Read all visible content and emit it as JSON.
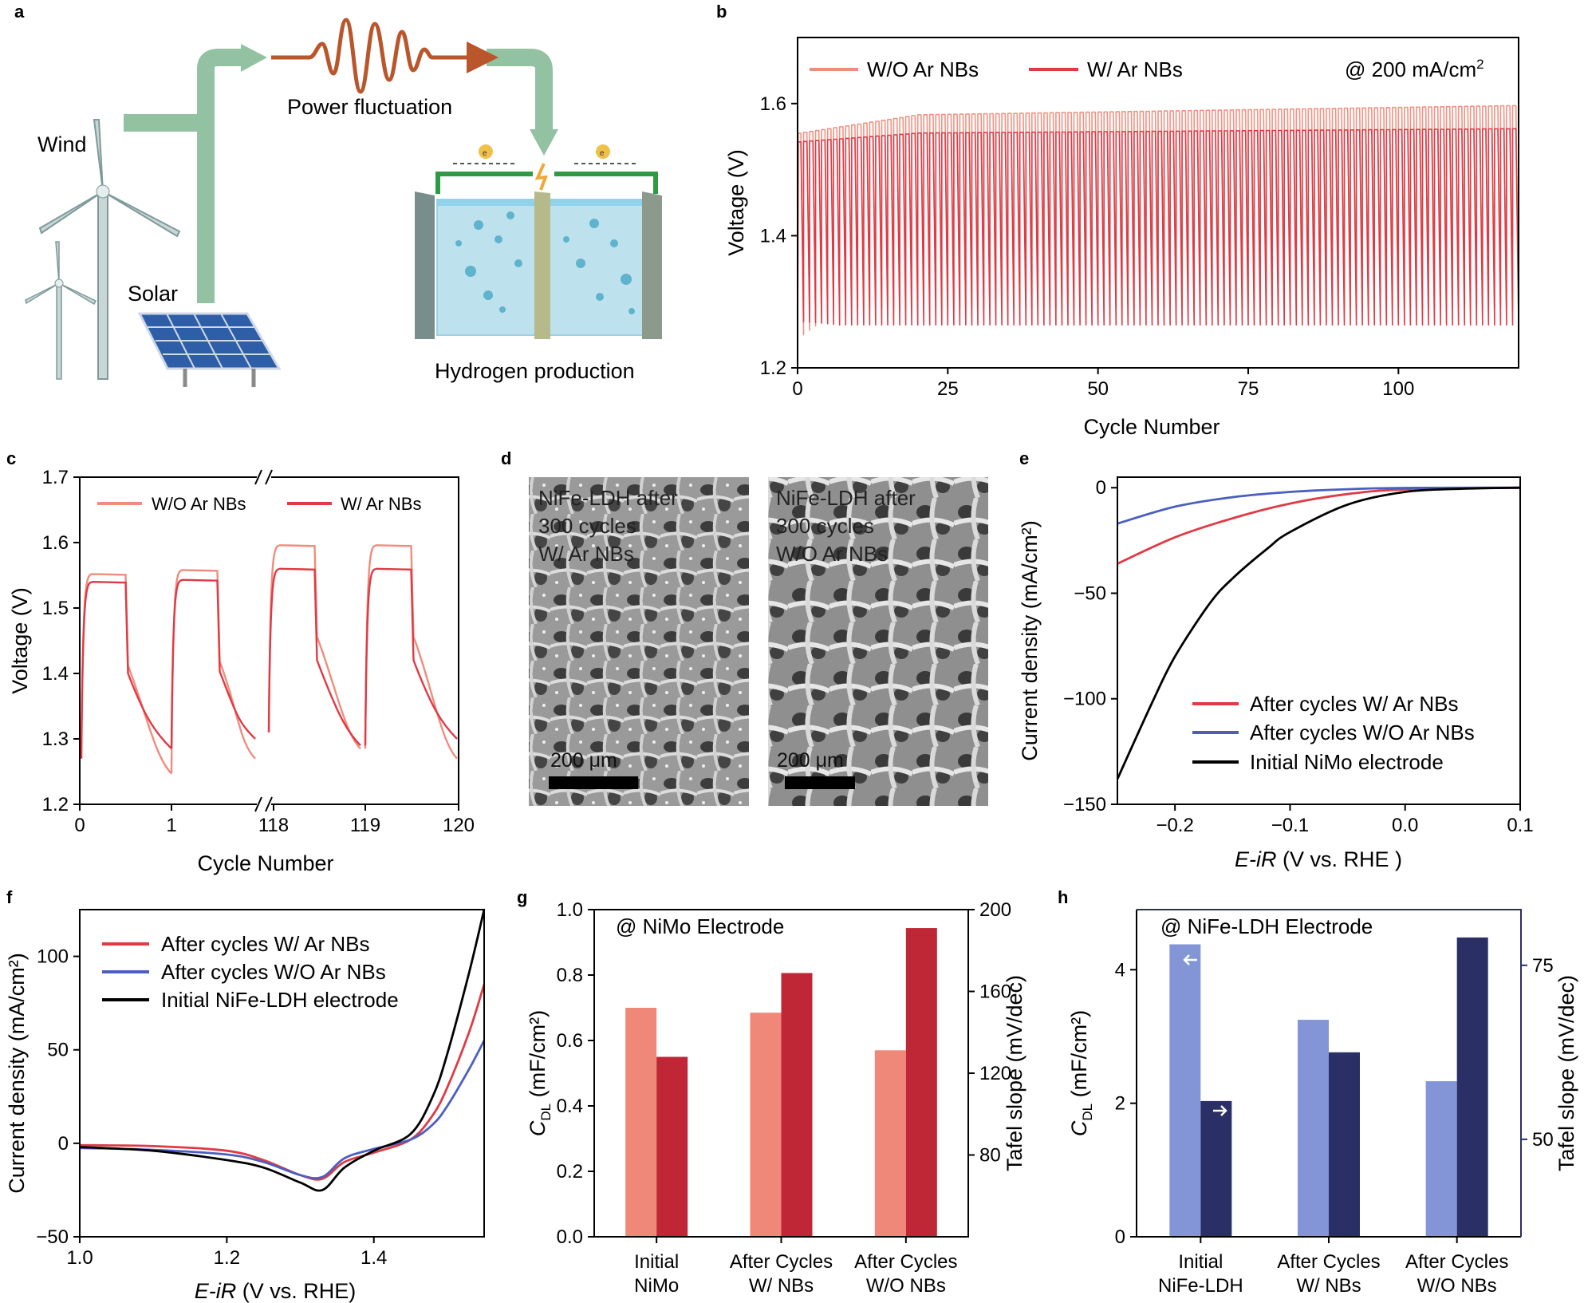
{
  "panels": {
    "a": {
      "label": "a",
      "wind": "Wind",
      "solar": "Solar",
      "fluctuation": "Power fluctuation",
      "production": "Hydrogen production",
      "electron": "e"
    },
    "b": {
      "label": "b"
    },
    "c": {
      "label": "c"
    },
    "d": {
      "label": "d",
      "left_note": [
        "NiFe-LDH after",
        "300 cycles",
        "W/ Ar NBs"
      ],
      "right_note": [
        "NiFe-LDH after",
        "300 cycles",
        "W/O Ar NBs"
      ],
      "scale": "200 μm"
    },
    "e": {
      "label": "e"
    },
    "f": {
      "label": "f"
    },
    "g": {
      "label": "g"
    },
    "h": {
      "label": "h"
    }
  },
  "colors": {
    "wo": "#f08c7c",
    "w": "#e03a45",
    "blue": "#4a5fc0",
    "black": "#000000",
    "g_cdl": "#f0887a",
    "g_tafel": "#bf2737",
    "h_cdl": "#8395d6",
    "h_tafel": "#2a2f66",
    "arrow": "#93c2a2"
  },
  "chart_data": [
    {
      "id": "b",
      "type": "line",
      "xlabel": "Cycle Number",
      "ylabel": "Voltage (V)",
      "xlim": [
        0,
        120
      ],
      "ylim": [
        1.2,
        1.7
      ],
      "xticks": [
        0,
        25,
        50,
        75,
        100
      ],
      "yticks": [
        1.2,
        1.4,
        1.6
      ],
      "annotation": "@ 200 mA/cm",
      "annotation_sup": "2",
      "series": [
        {
          "name": "W/O Ar NBs",
          "color": "wo",
          "high_start": 1.555,
          "high_end": 1.597,
          "low_start": 1.25,
          "low_end": 1.29
        },
        {
          "name": "W/ Ar NBs",
          "color": "w",
          "high_start": 1.542,
          "high_end": 1.562,
          "low_start": 1.27,
          "low_end": 1.265
        }
      ]
    },
    {
      "id": "c",
      "type": "line",
      "xlabel": "Cycle Number",
      "ylabel": "Voltage (V)",
      "ylim": [
        1.2,
        1.7
      ],
      "xticks": [
        "0",
        "1",
        "118",
        "119",
        "120"
      ],
      "yticks": [
        1.2,
        1.3,
        1.4,
        1.5,
        1.6,
        1.7
      ],
      "series": [
        {
          "name": "W/O Ar NBs",
          "color": "wo",
          "high": [
            1.552,
            1.558,
            1.596,
            1.596
          ],
          "low": [
            1.247,
            1.27,
            1.285,
            1.27
          ]
        },
        {
          "name": "W/ Ar NBs",
          "color": "w",
          "high": [
            1.54,
            1.543,
            1.56,
            1.56
          ],
          "low": [
            1.285,
            1.3,
            1.29,
            1.3
          ]
        }
      ]
    },
    {
      "id": "e",
      "type": "line",
      "xlabel_italic": "E-iR",
      "xlabel_rest": " (V vs. RHE )",
      "ylabel": "Current density (mA/cm²)",
      "xlim": [
        -0.25,
        0.1
      ],
      "ylim": [
        -150,
        5
      ],
      "xticks": [
        -0.2,
        -0.1,
        0.0,
        0.1
      ],
      "yticks": [
        0,
        -50,
        -100,
        -150
      ],
      "series": [
        {
          "name": "After cycles W/ Ar NBs",
          "color": "w",
          "x": [
            -0.25,
            -0.2,
            -0.15,
            -0.1,
            -0.05,
            0.0,
            0.1
          ],
          "y": [
            -36,
            -23.5,
            -14.5,
            -7.5,
            -3,
            -0.8,
            0
          ]
        },
        {
          "name": "After cycles W/O Ar NBs",
          "color": "blue",
          "x": [
            -0.25,
            -0.2,
            -0.15,
            -0.1,
            -0.05,
            0.0,
            0.1
          ],
          "y": [
            -17,
            -9,
            -4.5,
            -2,
            -0.7,
            -0.1,
            0
          ]
        },
        {
          "name": "Initial NiMo electrode",
          "color": "black",
          "x": [
            -0.25,
            -0.22,
            -0.2,
            -0.17,
            -0.15,
            -0.12,
            -0.1,
            -0.05,
            0.0,
            0.05,
            0.1
          ],
          "y": [
            -138,
            -102,
            -80,
            -55,
            -43,
            -29,
            -21,
            -8,
            -2,
            -0.5,
            0
          ]
        }
      ]
    },
    {
      "id": "f",
      "type": "line",
      "xlabel_italic": "E-iR",
      "xlabel_rest": " (V vs. RHE)",
      "ylabel": "Current density (mA/cm²)",
      "xlim": [
        1.0,
        1.55
      ],
      "ylim": [
        -50,
        125
      ],
      "xticks": [
        1.0,
        1.2,
        1.4
      ],
      "yticks": [
        -50,
        0,
        50,
        100
      ],
      "series": [
        {
          "name": "After cycles W/ Ar NBs",
          "color": "w",
          "x": [
            1.0,
            1.1,
            1.2,
            1.25,
            1.3,
            1.33,
            1.36,
            1.4,
            1.45,
            1.48,
            1.5,
            1.53,
            1.55
          ],
          "y": [
            -1,
            -1.5,
            -4,
            -9,
            -17,
            -19,
            -10,
            -5,
            2,
            15,
            30,
            60,
            85
          ]
        },
        {
          "name": "After cycles W/O Ar NBs",
          "color": "blue",
          "x": [
            1.0,
            1.1,
            1.2,
            1.25,
            1.3,
            1.33,
            1.36,
            1.4,
            1.45,
            1.48,
            1.5,
            1.53,
            1.55
          ],
          "y": [
            -2.5,
            -3.5,
            -6,
            -10,
            -17,
            -18,
            -8,
            -3,
            2,
            10,
            20,
            40,
            55
          ]
        },
        {
          "name": "Initial NiFe-LDH electrode",
          "color": "black",
          "x": [
            1.0,
            1.1,
            1.2,
            1.25,
            1.3,
            1.33,
            1.36,
            1.4,
            1.45,
            1.48,
            1.5,
            1.53,
            1.55
          ],
          "y": [
            -2,
            -4,
            -9,
            -13,
            -21,
            -25,
            -13,
            -4,
            5,
            25,
            48,
            92,
            125
          ]
        }
      ]
    },
    {
      "id": "g",
      "type": "bar",
      "annotation": "@ NiMo Electrode",
      "categories": [
        [
          "Initial",
          "NiMo"
        ],
        [
          "After Cycles",
          "W/ NBs"
        ],
        [
          "After Cycles",
          "W/O NBs"
        ]
      ],
      "ylabel_left_main": "C",
      "ylabel_left_sub": "DL",
      "ylabel_left_rest": " (mF/cm²)",
      "ylabel_right": "Tafel slope (mV/dec)",
      "ylim_left": [
        0,
        1.0
      ],
      "yticks_left": [
        "0.0",
        "0.2",
        "0.4",
        "0.6",
        "0.8",
        "1.0"
      ],
      "ylim_right": [
        40,
        200
      ],
      "yticks_right": [
        80,
        120,
        160,
        200
      ],
      "series": [
        {
          "name": "C_DL",
          "axis": "left",
          "color": "g_cdl",
          "values": [
            0.7,
            0.685,
            0.57
          ]
        },
        {
          "name": "Tafel slope",
          "axis": "right",
          "color": "g_tafel",
          "values": [
            128,
            169,
            191
          ]
        }
      ]
    },
    {
      "id": "h",
      "type": "bar",
      "annotation": "@ NiFe-LDH Electrode",
      "categories": [
        [
          "Initial",
          "NiFe-LDH"
        ],
        [
          "After Cycles",
          "W/ NBs"
        ],
        [
          "After Cycles",
          "W/O NBs"
        ]
      ],
      "ylabel_left_main": "C",
      "ylabel_left_sub": "DL",
      "ylabel_left_rest": " (mF/cm²)",
      "ylabel_right": "Tafel slope (mV/dec)",
      "ylim_left": [
        0,
        4.9
      ],
      "yticks_left": [
        0,
        2,
        4
      ],
      "ylim_right": [
        36,
        83
      ],
      "yticks_right": [
        50,
        75
      ],
      "series": [
        {
          "name": "C_DL",
          "axis": "left",
          "color": "h_cdl",
          "values": [
            4.38,
            3.25,
            2.33
          ]
        },
        {
          "name": "Tafel slope",
          "axis": "right",
          "color": "h_tafel",
          "values": [
            55.5,
            62.5,
            79
          ]
        }
      ]
    }
  ]
}
